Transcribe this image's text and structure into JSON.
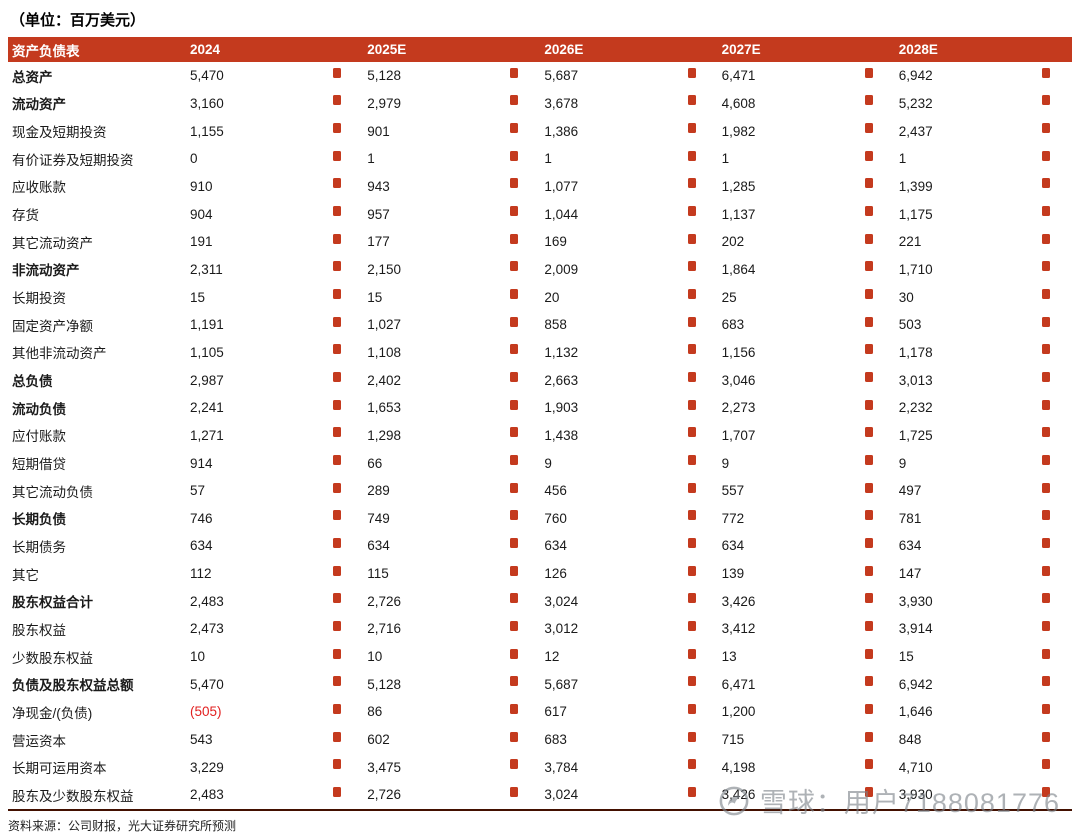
{
  "title": "（单位：百万美元）",
  "source_note": "资料来源：公司财报，光大证券研究所预测",
  "watermark": {
    "text": "雪球：用户7188081776"
  },
  "colors": {
    "header_bg": "#C43A1E",
    "marker": "#C43A1E",
    "negative": "#E21F1F",
    "border_dark": "#431000"
  },
  "table": {
    "header": [
      "资产负债表",
      "2024",
      "2025E",
      "2026E",
      "2027E",
      "2028E"
    ],
    "rows": [
      {
        "label": "总资产",
        "bold": true,
        "values": [
          "5,470",
          "5,128",
          "5,687",
          "6,471",
          "6,942"
        ]
      },
      {
        "label": "流动资产",
        "bold": true,
        "values": [
          "3,160",
          "2,979",
          "3,678",
          "4,608",
          "5,232"
        ]
      },
      {
        "label": "现金及短期投资",
        "bold": false,
        "values": [
          "1,155",
          "901",
          "1,386",
          "1,982",
          "2,437"
        ]
      },
      {
        "label": "有价证券及短期投资",
        "bold": false,
        "values": [
          "0",
          "1",
          "1",
          "1",
          "1"
        ]
      },
      {
        "label": "应收账款",
        "bold": false,
        "values": [
          "910",
          "943",
          "1,077",
          "1,285",
          "1,399"
        ]
      },
      {
        "label": "存货",
        "bold": false,
        "values": [
          "904",
          "957",
          "1,044",
          "1,137",
          "1,175"
        ]
      },
      {
        "label": "其它流动资产",
        "bold": false,
        "values": [
          "191",
          "177",
          "169",
          "202",
          "221"
        ]
      },
      {
        "label": "非流动资产",
        "bold": true,
        "values": [
          "2,311",
          "2,150",
          "2,009",
          "1,864",
          "1,710"
        ]
      },
      {
        "label": "长期投资",
        "bold": false,
        "values": [
          "15",
          "15",
          "20",
          "25",
          "30"
        ]
      },
      {
        "label": "固定资产净额",
        "bold": false,
        "values": [
          "1,191",
          "1,027",
          "858",
          "683",
          "503"
        ]
      },
      {
        "label": "其他非流动资产",
        "bold": false,
        "values": [
          "1,105",
          "1,108",
          "1,132",
          "1,156",
          "1,178"
        ]
      },
      {
        "label": "总负债",
        "bold": true,
        "values": [
          "2,987",
          "2,402",
          "2,663",
          "3,046",
          "3,013"
        ]
      },
      {
        "label": "流动负债",
        "bold": true,
        "values": [
          "2,241",
          "1,653",
          "1,903",
          "2,273",
          "2,232"
        ]
      },
      {
        "label": "应付账款",
        "bold": false,
        "values": [
          "1,271",
          "1,298",
          "1,438",
          "1,707",
          "1,725"
        ]
      },
      {
        "label": "短期借贷",
        "bold": false,
        "values": [
          "914",
          "66",
          "9",
          "9",
          "9"
        ]
      },
      {
        "label": "其它流动负债",
        "bold": false,
        "values": [
          "57",
          "289",
          "456",
          "557",
          "497"
        ]
      },
      {
        "label": "长期负债",
        "bold": true,
        "values": [
          "746",
          "749",
          "760",
          "772",
          "781"
        ]
      },
      {
        "label": "长期债务",
        "bold": false,
        "values": [
          "634",
          "634",
          "634",
          "634",
          "634"
        ]
      },
      {
        "label": "其它",
        "bold": false,
        "values": [
          "112",
          "115",
          "126",
          "139",
          "147"
        ]
      },
      {
        "label": "股东权益合计",
        "bold": true,
        "values": [
          "2,483",
          "2,726",
          "3,024",
          "3,426",
          "3,930"
        ]
      },
      {
        "label": "股东权益",
        "bold": false,
        "values": [
          "2,473",
          "2,716",
          "3,012",
          "3,412",
          "3,914"
        ]
      },
      {
        "label": "少数股东权益",
        "bold": false,
        "values": [
          "10",
          "10",
          "12",
          "13",
          "15"
        ]
      },
      {
        "label": "负债及股东权益总额",
        "bold": true,
        "values": [
          "5,470",
          "5,128",
          "5,687",
          "6,471",
          "6,942"
        ]
      },
      {
        "label": "净现金/(负债)",
        "bold": false,
        "values": [
          "(505)",
          "86",
          "617",
          "1,200",
          "1,646"
        ]
      },
      {
        "label": "营运资本",
        "bold": false,
        "values": [
          "543",
          "602",
          "683",
          "715",
          "848"
        ]
      },
      {
        "label": "长期可运用资本",
        "bold": false,
        "values": [
          "3,229",
          "3,475",
          "3,784",
          "4,198",
          "4,710"
        ]
      },
      {
        "label": "股东及少数股东权益",
        "bold": false,
        "values": [
          "2,483",
          "2,726",
          "3,024",
          "3,426",
          "3,930"
        ]
      }
    ]
  }
}
